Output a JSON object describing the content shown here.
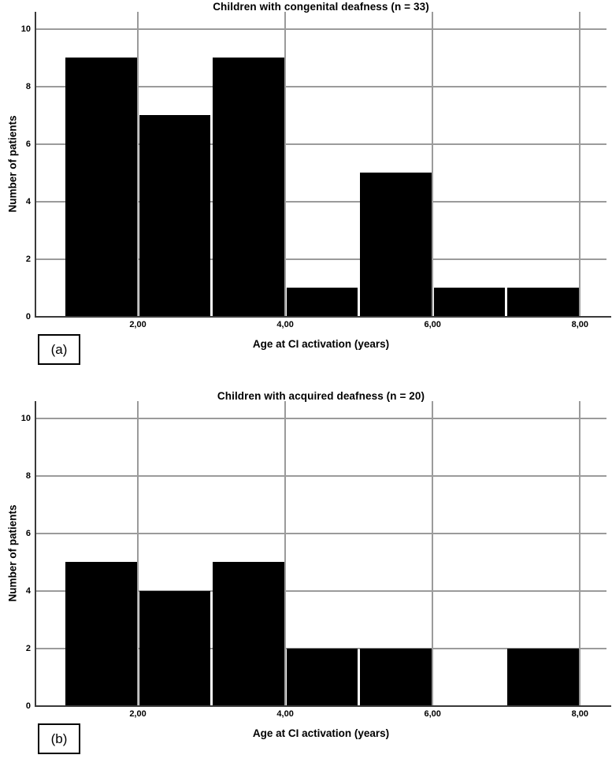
{
  "chart_data": [
    {
      "type": "bar",
      "subtype": "histogram",
      "title": "Children with congenital deafness (n = 33)",
      "panel_label": "(a)",
      "xlabel": "Age at CI activation (years)",
      "ylabel": "Number of patients",
      "n": 33,
      "bin_edges": [
        1,
        2,
        3,
        4,
        5,
        6,
        7,
        8
      ],
      "values": [
        9,
        7,
        9,
        1,
        5,
        1,
        1
      ],
      "x_ticks": [
        {
          "v": 2,
          "label": "2,00"
        },
        {
          "v": 4,
          "label": "4,00"
        },
        {
          "v": 6,
          "label": "6,00"
        },
        {
          "v": 8,
          "label": "8,00"
        }
      ],
      "y_ticks": [
        {
          "v": 0,
          "label": "0"
        },
        {
          "v": 2,
          "label": "2"
        },
        {
          "v": 4,
          "label": "4"
        },
        {
          "v": 6,
          "label": "6"
        },
        {
          "v": 8,
          "label": "8"
        },
        {
          "v": 10,
          "label": "10"
        }
      ],
      "xlim": [
        0.61,
        8.36
      ],
      "ylim": [
        0,
        10.6
      ],
      "grid": true,
      "bar_color": "#000000",
      "gridline_color": "#9b9b9b",
      "axis_color": "#3a3a3a"
    },
    {
      "type": "bar",
      "subtype": "histogram",
      "title": "Children with acquired deafness (n = 20)",
      "panel_label": "(b)",
      "xlabel": "Age at CI activation (years)",
      "ylabel": "Number of patients",
      "n": 20,
      "bin_edges": [
        1,
        2,
        3,
        4,
        5,
        6,
        7,
        8
      ],
      "values": [
        5,
        4,
        5,
        2,
        2,
        0,
        2
      ],
      "x_ticks": [
        {
          "v": 2,
          "label": "2,00"
        },
        {
          "v": 4,
          "label": "4,00"
        },
        {
          "v": 6,
          "label": "6,00"
        },
        {
          "v": 8,
          "label": "8,00"
        }
      ],
      "y_ticks": [
        {
          "v": 0,
          "label": "0"
        },
        {
          "v": 2,
          "label": "2"
        },
        {
          "v": 4,
          "label": "4"
        },
        {
          "v": 6,
          "label": "6"
        },
        {
          "v": 8,
          "label": "8"
        },
        {
          "v": 10,
          "label": "10"
        }
      ],
      "xlim": [
        0.61,
        8.36
      ],
      "ylim": [
        0,
        10.6
      ],
      "grid": true,
      "bar_color": "#000000",
      "gridline_color": "#9b9b9b",
      "axis_color": "#3a3a3a"
    }
  ]
}
